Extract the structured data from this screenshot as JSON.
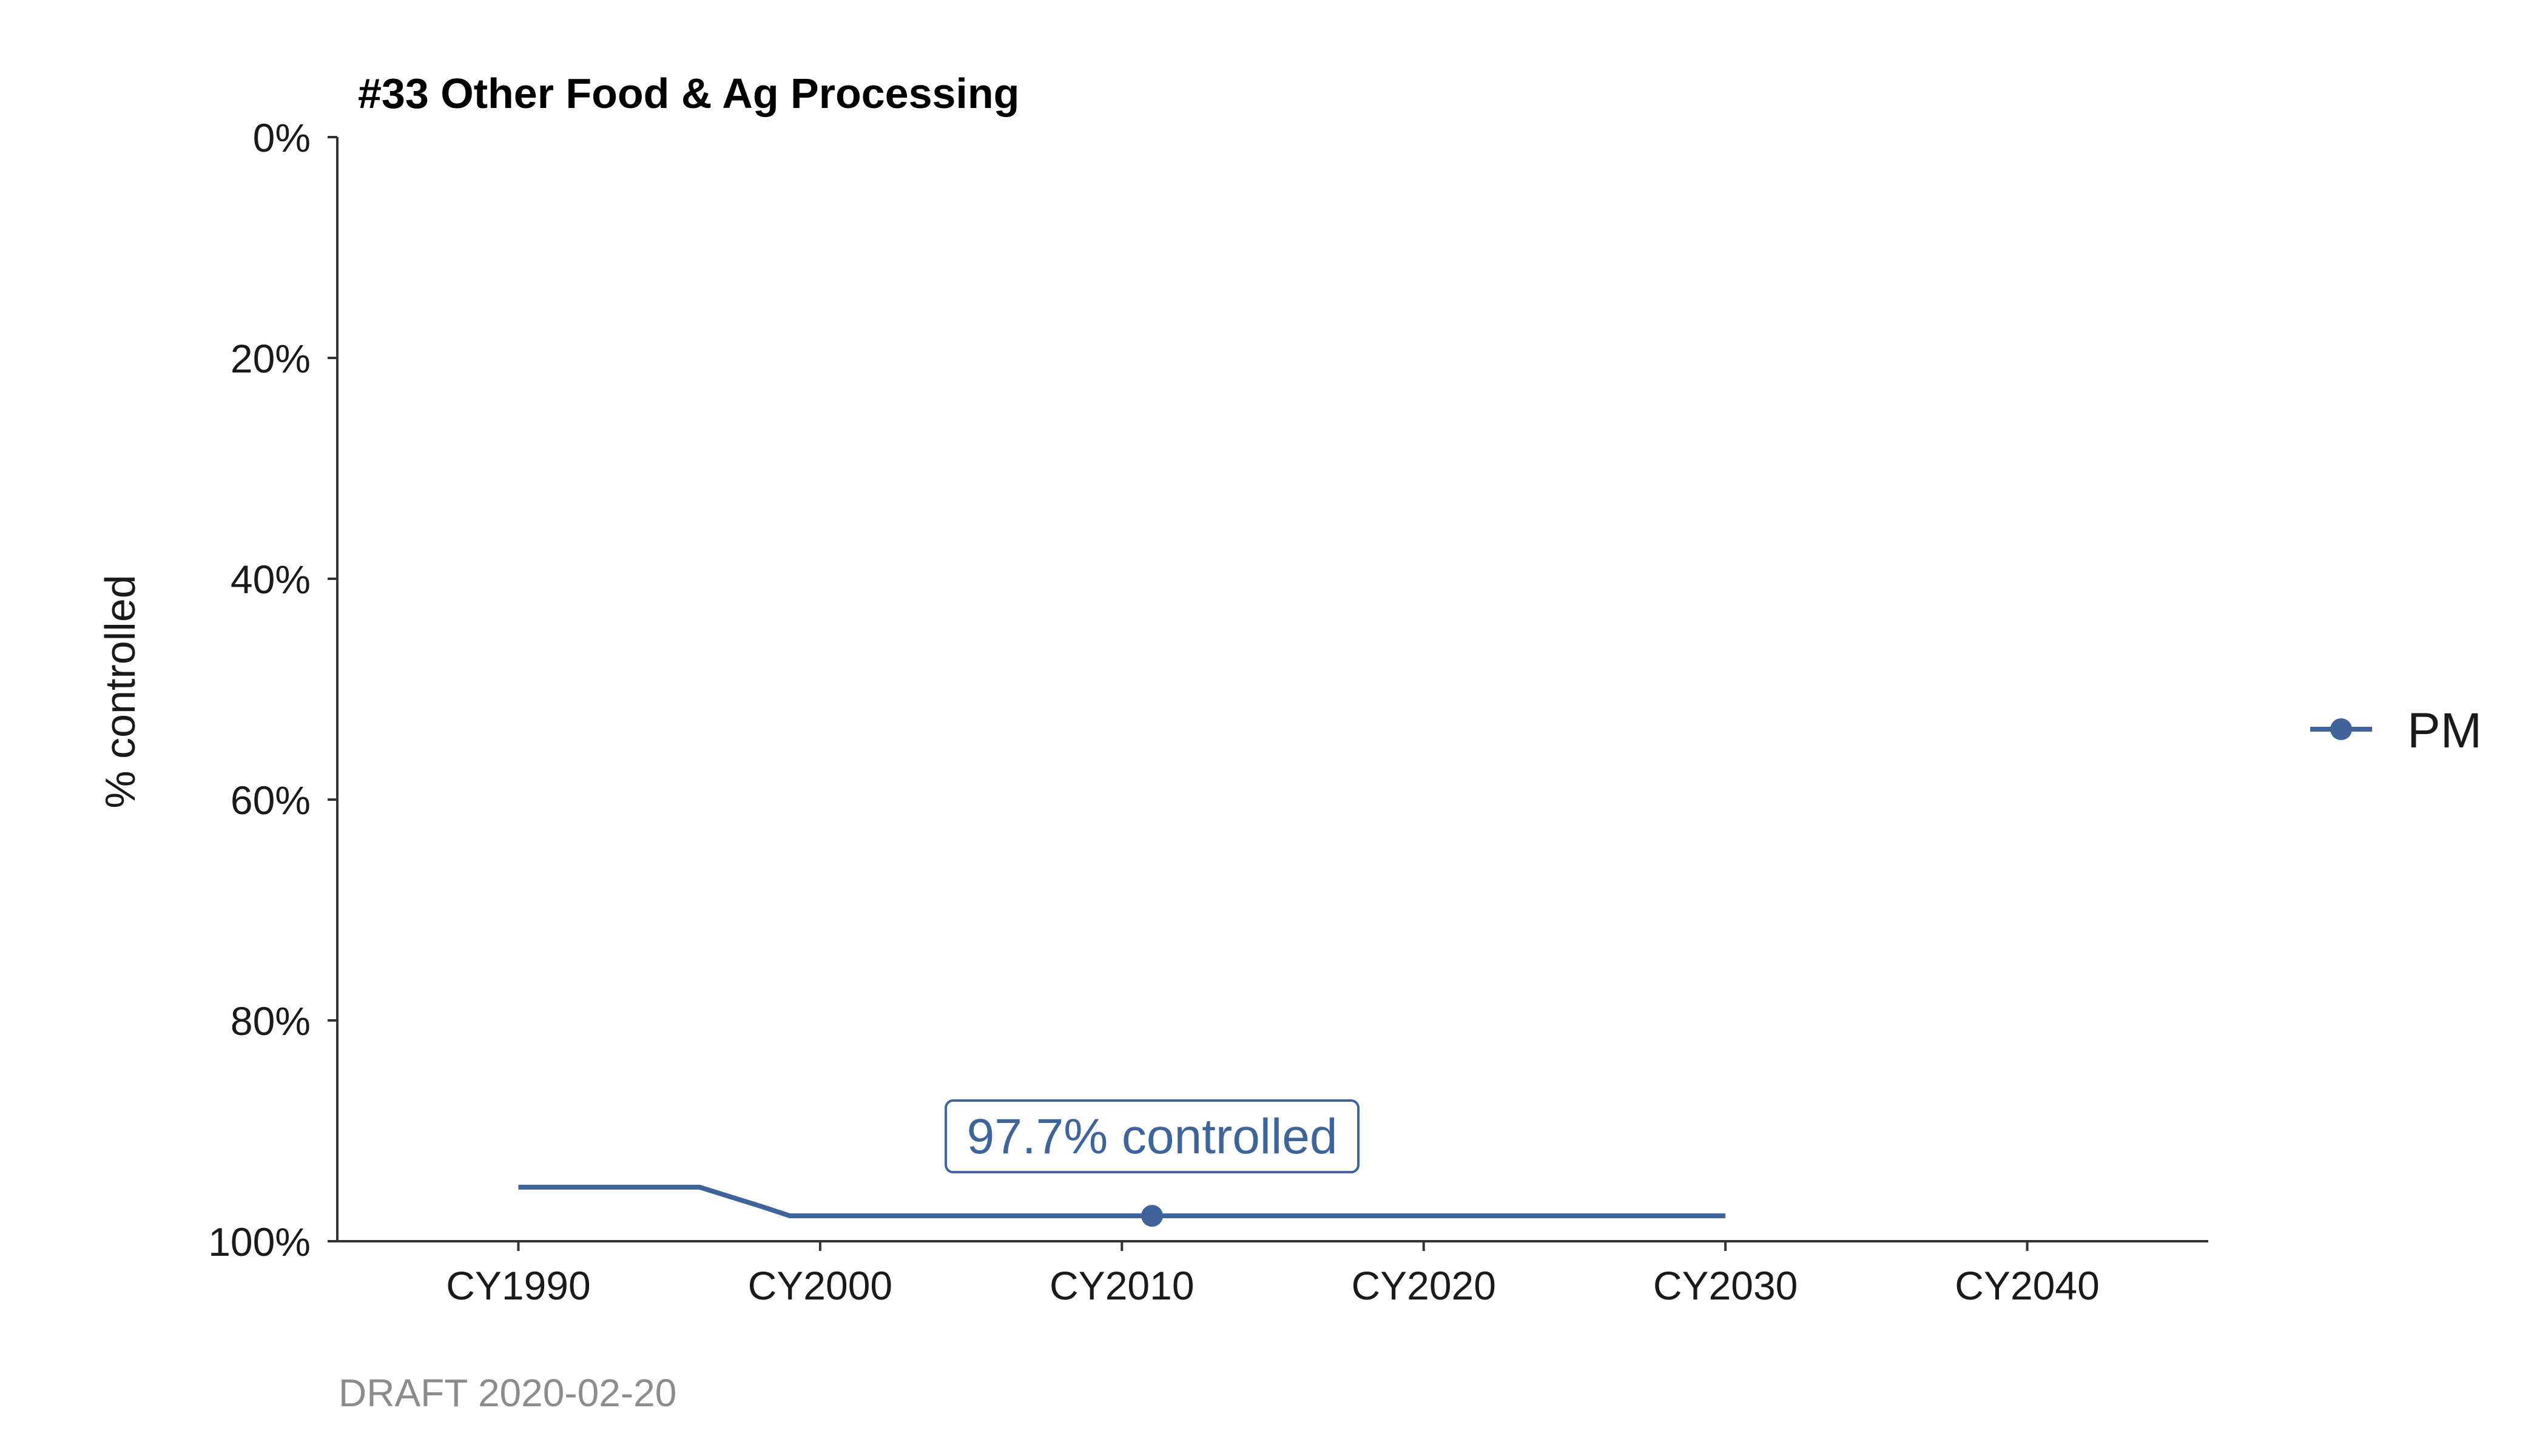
{
  "chart_data": {
    "type": "line",
    "title": "#33 Other Food & Ag Processing",
    "ylabel": "% controlled",
    "xlabel": "",
    "y_reversed": true,
    "ylim": [
      0,
      100
    ],
    "xlim": [
      1984,
      2046
    ],
    "y_ticks": [
      0,
      20,
      40,
      60,
      80,
      100
    ],
    "y_tick_labels": [
      "0%",
      "20%",
      "40%",
      "60%",
      "80%",
      "100%"
    ],
    "x_ticks": [
      1990,
      2000,
      2010,
      2020,
      2030,
      2040
    ],
    "x_tick_labels": [
      "CY1990",
      "CY2000",
      "CY2010",
      "CY2020",
      "CY2030",
      "CY2040"
    ],
    "series": [
      {
        "name": "PM",
        "color": "#3f6499",
        "x": [
          1990,
          1996,
          1998,
          1999,
          2011,
          2030
        ],
        "y": [
          95.1,
          95.1,
          96.8,
          97.7,
          97.7,
          97.7
        ]
      }
    ],
    "highlight_point": {
      "x": 2011,
      "y": 97.7
    },
    "annotation": {
      "text": "97.7% controlled",
      "x": 2011,
      "y": 97.7
    },
    "legend": {
      "position": "right",
      "entries": [
        "PM"
      ]
    },
    "grid": false,
    "caption": "DRAFT 2020-02-20"
  }
}
